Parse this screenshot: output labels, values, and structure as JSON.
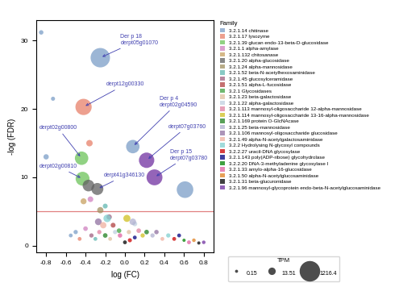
{
  "chart_data": {
    "type": "scatter",
    "xlabel": "log (FC)",
    "ylabel": "-log (FDR)",
    "xlim": [
      -0.9,
      0.9
    ],
    "ylim": [
      -1,
      33
    ],
    "xticks": [
      -0.8,
      -0.6,
      -0.4,
      -0.2,
      0.0,
      0.2,
      0.4,
      0.6,
      0.8
    ],
    "yticks": [
      0,
      10,
      20,
      30
    ],
    "legend": "upper left",
    "legend_title": "Family",
    "series": [
      {
        "name": "3.2.1.14 chitinase",
        "color": "#7B9EC7",
        "x": [
          -0.85,
          -0.73,
          -0.25,
          0.08,
          0.61,
          -0.8,
          -0.55,
          -0.5
        ],
        "y": [
          31.2,
          21.5,
          27.5,
          14.5,
          8.2,
          13.0,
          1.5,
          2.0
        ],
        "sizes": [
          3.5,
          2.5,
          1216.4,
          280.0,
          650.0,
          7.0,
          2.0,
          3.0
        ]
      },
      {
        "name": "3.2.1.17 lysozyme",
        "color": "#E8816A",
        "x": [
          -0.42,
          -0.36,
          -0.46
        ],
        "y": [
          20.3,
          15.0,
          1.0
        ],
        "sizes": [
          600.0,
          15.0,
          2.0
        ]
      },
      {
        "name": "3.2.1.39 glucan endo-13-beta-D-glucosidase",
        "color": "#6DC45A",
        "x": [
          -0.44,
          -0.43
        ],
        "y": [
          12.8,
          9.8
        ],
        "sizes": [
          280.0,
          320.0
        ]
      },
      {
        "name": "3.2.1.1 alpha-amylase",
        "color": "#CF80C0",
        "x": [
          -0.35,
          -0.4
        ],
        "y": [
          6.8,
          2.5
        ],
        "sizes": [
          9.0,
          4.0
        ]
      },
      {
        "name": "3.2.1.132 chitosanase",
        "color": "#C8A060",
        "x": [
          -0.42
        ],
        "y": [
          6.5
        ],
        "sizes": [
          11.0
        ]
      },
      {
        "name": "3.2.1.20 alpha-glucosidase",
        "color": "#606060",
        "x": [
          -0.37,
          -0.28
        ],
        "y": [
          8.8,
          8.3
        ],
        "sizes": [
          160.0,
          180.0
        ]
      },
      {
        "name": "3.2.1.24 alpha-mannosidase",
        "color": "#A09060",
        "x": [
          -0.25
        ],
        "y": [
          5.2
        ],
        "sizes": [
          13.51
        ]
      },
      {
        "name": "3.2.1.52 beta-N-acetylhexosaminidase",
        "color": "#60B8B0",
        "x": [
          -0.2,
          -0.3
        ],
        "y": [
          5.8,
          1.0
        ],
        "sizes": [
          5.0,
          2.0
        ]
      },
      {
        "name": "3.2.1.45 glucosylceramidase",
        "color": "#A06080",
        "x": [
          -0.16,
          -0.34
        ],
        "y": [
          4.2,
          1.5
        ],
        "sizes": [
          7.0,
          3.0
        ]
      },
      {
        "name": "3.2.1.51 alpha-L-fucosidase",
        "color": "#B04040",
        "x": [
          -0.12
        ],
        "y": [
          3.0
        ],
        "sizes": [
          5.0
        ]
      },
      {
        "name": "3.2.1 Glycosidases",
        "color": "#40A040",
        "x": [
          -0.06
        ],
        "y": [
          2.2
        ],
        "sizes": [
          4.0
        ]
      },
      {
        "name": "3.2.1.23 beta-galactosidase",
        "color": "#E0C0A0",
        "x": [
          0.04,
          -0.15
        ],
        "y": [
          2.0,
          1.0
        ],
        "sizes": [
          3.0,
          2.0
        ]
      },
      {
        "name": "3.2.1.22 alpha-galactosidase",
        "color": "#C0D0E0",
        "x": [
          0.1,
          -0.1
        ],
        "y": [
          3.2,
          2.0
        ],
        "sizes": [
          5.0,
          3.0
        ]
      },
      {
        "name": "3.2.1.113 mannosyl-oligosaccharide 12-alpha-mannosidase",
        "color": "#E080A0",
        "x": [
          0.14,
          -0.26
        ],
        "y": [
          2.2,
          2.0
        ],
        "sizes": [
          4.0,
          3.0
        ]
      },
      {
        "name": "3.2.1.114 mannosyl-oligosaccharide 13-16-alpha-mannosidase",
        "color": "#D0C020",
        "x": [
          0.18,
          0.02
        ],
        "y": [
          1.5,
          4.0
        ],
        "sizes": [
          3.0,
          22.0
        ]
      },
      {
        "name": "3.2.1.169 protein O-GlcNAcase",
        "color": "#208020",
        "x": [
          0.22,
          -0.2
        ],
        "y": [
          2.0,
          1.5
        ],
        "sizes": [
          4.0,
          4.0
        ]
      },
      {
        "name": "3.2.1.25 beta-mannosidase",
        "color": "#B0B0D0",
        "x": [
          0.28,
          0.08
        ],
        "y": [
          1.5,
          3.5
        ],
        "sizes": [
          3.0,
          16.0
        ]
      },
      {
        "name": "3.2.1.106 mannosyl-oligosaccharide glucosidase",
        "color": "#9070A0",
        "x": [
          0.32,
          -0.27
        ],
        "y": [
          2.0,
          3.5
        ],
        "sizes": [
          3.5,
          18.0
        ]
      },
      {
        "name": "3.2.1.49 alpha-N-acetylgalactosaminidase",
        "color": "#F0B0A0",
        "x": [
          0.38,
          -0.22
        ],
        "y": [
          1.0,
          3.0
        ],
        "sizes": [
          2.0,
          14.0
        ]
      },
      {
        "name": "3.2.2 Hydrolysing N-glycosyl compounds",
        "color": "#80D0D0",
        "x": [
          0.44,
          -0.18
        ],
        "y": [
          1.5,
          4.0
        ],
        "sizes": [
          3.0,
          28.0
        ]
      },
      {
        "name": "3.2.2.27 uracil-DNA glycosylase",
        "color": "#CC0000",
        "x": [
          0.5,
          0.05
        ],
        "y": [
          1.0,
          0.8
        ],
        "sizes": [
          2.0,
          2.5
        ]
      },
      {
        "name": "3.2.1.143 poly(ADP-ribose) glycohydrolase",
        "color": "#000080",
        "x": [
          0.55,
          0.1
        ],
        "y": [
          1.5,
          1.2
        ],
        "sizes": [
          2.0,
          2.0
        ]
      },
      {
        "name": "3.2.2.20 DNA-3-methyladenine glycosylase I",
        "color": "#008000",
        "x": [
          0.6
        ],
        "y": [
          0.8
        ],
        "sizes": [
          1.0
        ]
      },
      {
        "name": "3.2.1.33 amylo-alpha-16-glucosidase",
        "color": "#E060A0",
        "x": [
          0.65,
          -0.05
        ],
        "y": [
          0.5,
          1.5
        ],
        "sizes": [
          2.0,
          3.5
        ]
      },
      {
        "name": "3.2.1.50 alpha-N-acetylglucosaminidase",
        "color": "#E08020",
        "x": [
          0.7
        ],
        "y": [
          0.8
        ],
        "sizes": [
          1.5
        ]
      },
      {
        "name": "3.2.1.31 beta-glucuronidase",
        "color": "#000000",
        "x": [
          0.75,
          0.0
        ],
        "y": [
          0.4,
          0.5
        ],
        "sizes": [
          1.0,
          2.0
        ]
      },
      {
        "name": "3.2.1.96 mannosyl-glycoprotein endo-beta-N-acetylglucosaminidase",
        "color": "#7030A0",
        "x": [
          0.22,
          0.3,
          0.8
        ],
        "y": [
          12.5,
          10.0,
          0.5
        ],
        "sizes": [
          480.0,
          550.0,
          1.5
        ]
      }
    ],
    "size_legend": {
      "title": "TPM",
      "values": [
        0.15,
        13.51,
        1216.4
      ]
    },
    "reference_lines": [
      {
        "y": 5.0,
        "color": "#E08080"
      }
    ],
    "annotation_color": "#4040B0",
    "annotations": [
      {
        "text": "Der p 18\nderpt05g01070",
        "x": -0.25,
        "y": 27.5
      },
      {
        "text": "derpt12g00330",
        "x": -0.42,
        "y": 20.3
      },
      {
        "text": "derpt02g00800",
        "x": -0.44,
        "y": 12.8
      },
      {
        "text": "derpt02g00810",
        "x": -0.43,
        "y": 9.8
      },
      {
        "text": "derpt41g346130",
        "x": -0.28,
        "y": 8.3
      },
      {
        "text": "Der p 4\nderpt02g04590",
        "x": 0.08,
        "y": 14.5
      },
      {
        "text": "derpt07g03760",
        "x": 0.22,
        "y": 12.5
      },
      {
        "text": "Der p 15\nderpt07g03780",
        "x": 0.3,
        "y": 10.0
      }
    ]
  }
}
